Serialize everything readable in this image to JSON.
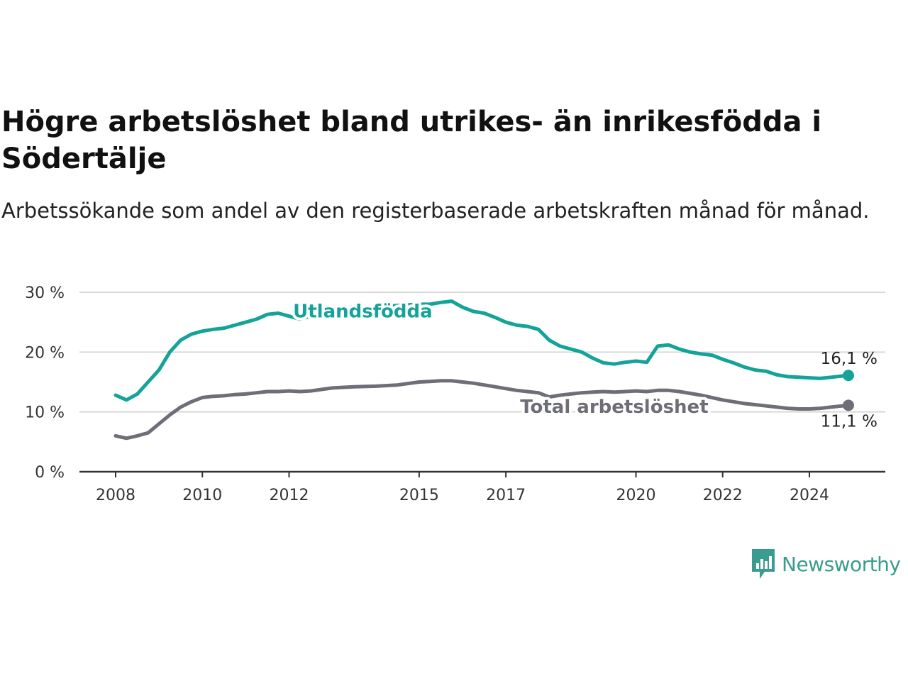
{
  "header": {
    "title": "Högre arbetslöshet bland utrikes- än inrikesfödda i Södertälje",
    "subtitle": "Arbetssökande som andel av den registerbaserade arbetskraften månad för månad."
  },
  "brand": {
    "name": "Newsworthy",
    "color": "#3a9c8f"
  },
  "chart_data": {
    "type": "line",
    "title": "Högre arbetslöshet bland utrikes- än inrikesfödda i Södertälje",
    "subtitle": "Arbetssökande som andel av den registerbaserade arbetskraften månad för månad.",
    "xlabel": "",
    "ylabel": "",
    "xlim": [
      2008,
      2025.7
    ],
    "ylim": [
      0,
      30
    ],
    "x_ticks": [
      2008,
      2010,
      2012,
      2015,
      2017,
      2020,
      2022,
      2024
    ],
    "x_tick_labels": [
      "2008",
      "2010",
      "2012",
      "2015",
      "2017",
      "2020",
      "2022",
      "2024"
    ],
    "y_ticks": [
      0,
      10,
      20,
      30
    ],
    "y_tick_labels": [
      "0 %",
      "10 %",
      "20 %",
      "30 %"
    ],
    "grid": "horizontal",
    "legend": "inline labels",
    "series": [
      {
        "name": "Utlandsfödda",
        "color": "#14a398",
        "end_label": "16,1 %",
        "x": [
          2008.0,
          2008.25,
          2008.5,
          2008.75,
          2009.0,
          2009.25,
          2009.5,
          2009.75,
          2010.0,
          2010.25,
          2010.5,
          2010.75,
          2011.0,
          2011.25,
          2011.5,
          2011.75,
          2012.0,
          2012.25,
          2012.5,
          2013.0,
          2013.5,
          2014.0,
          2014.5,
          2015.0,
          2015.25,
          2015.5,
          2015.75,
          2016.0,
          2016.25,
          2016.5,
          2016.75,
          2017.0,
          2017.25,
          2017.5,
          2017.75,
          2018.0,
          2018.25,
          2018.5,
          2018.75,
          2019.0,
          2019.25,
          2019.5,
          2019.75,
          2020.0,
          2020.25,
          2020.5,
          2020.75,
          2021.0,
          2021.25,
          2021.5,
          2021.75,
          2022.0,
          2022.25,
          2022.5,
          2022.75,
          2023.0,
          2023.25,
          2023.5,
          2023.75,
          2024.0,
          2024.25,
          2024.5,
          2024.75,
          2024.9
        ],
        "values": [
          12.8,
          12.0,
          13.0,
          15.0,
          17.0,
          20.0,
          22.0,
          23.0,
          23.5,
          23.8,
          24.0,
          24.5,
          25.0,
          25.5,
          26.3,
          26.5,
          26.0,
          25.5,
          26.0,
          26.5,
          27.0,
          27.5,
          27.8,
          28.0,
          28.0,
          28.3,
          28.5,
          27.5,
          26.8,
          26.5,
          25.8,
          25.0,
          24.5,
          24.3,
          23.8,
          22.0,
          21.0,
          20.5,
          20.0,
          19.0,
          18.2,
          18.0,
          18.3,
          18.5,
          18.3,
          21.0,
          21.2,
          20.5,
          20.0,
          19.7,
          19.5,
          18.8,
          18.2,
          17.5,
          17.0,
          16.8,
          16.2,
          15.9,
          15.8,
          15.7,
          15.6,
          15.8,
          16.0,
          16.1
        ]
      },
      {
        "name": "Total arbetslöshet",
        "color": "#6e6e78",
        "end_label": "11,1 %",
        "x": [
          2008.0,
          2008.25,
          2008.5,
          2008.75,
          2009.0,
          2009.25,
          2009.5,
          2009.75,
          2010.0,
          2010.25,
          2010.5,
          2010.75,
          2011.0,
          2011.25,
          2011.5,
          2011.75,
          2012.0,
          2012.25,
          2012.5,
          2013.0,
          2013.5,
          2014.0,
          2014.5,
          2015.0,
          2015.25,
          2015.5,
          2015.75,
          2016.0,
          2016.25,
          2016.5,
          2016.75,
          2017.0,
          2017.25,
          2017.5,
          2017.75,
          2018.0,
          2018.25,
          2018.5,
          2018.75,
          2019.0,
          2019.25,
          2019.5,
          2019.75,
          2020.0,
          2020.25,
          2020.5,
          2020.75,
          2021.0,
          2021.25,
          2021.5,
          2021.75,
          2022.0,
          2022.25,
          2022.5,
          2022.75,
          2023.0,
          2023.25,
          2023.5,
          2023.75,
          2024.0,
          2024.25,
          2024.5,
          2024.75,
          2024.9
        ],
        "values": [
          6.0,
          5.6,
          6.0,
          6.5,
          8.0,
          9.5,
          10.8,
          11.7,
          12.4,
          12.6,
          12.7,
          12.9,
          13.0,
          13.2,
          13.4,
          13.4,
          13.5,
          13.4,
          13.5,
          14.0,
          14.2,
          14.3,
          14.5,
          15.0,
          15.1,
          15.2,
          15.2,
          15.0,
          14.8,
          14.5,
          14.2,
          13.9,
          13.6,
          13.4,
          13.2,
          12.5,
          12.8,
          13.0,
          13.2,
          13.3,
          13.4,
          13.3,
          13.4,
          13.5,
          13.4,
          13.6,
          13.6,
          13.4,
          13.1,
          12.8,
          12.4,
          12.0,
          11.7,
          11.4,
          11.2,
          11.0,
          10.8,
          10.6,
          10.5,
          10.5,
          10.6,
          10.8,
          11.0,
          11.1
        ]
      }
    ],
    "annotations": [
      {
        "text": "Utlandsfödda",
        "series": "Utlandsfödda",
        "x": 2013.7,
        "y": 27.0
      },
      {
        "text": "Total arbetslöshet",
        "series": "Total arbetslöshet",
        "x": 2019.5,
        "y": 11.0
      }
    ]
  }
}
